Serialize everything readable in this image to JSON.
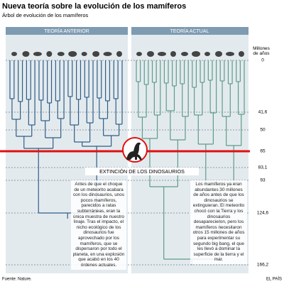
{
  "header": {
    "title": "Nueva teoría sobre la evolución de los mamíferos",
    "subtitle": "Árbol de evolución de los mamíferos"
  },
  "panels": [
    {
      "label": "TEORÍA ANTERIOR",
      "text": "Antes de que el choque de un meteorito acabara con los dinosaurios, unos pocos mamíferos, parecidos a ratas subterráneas, eran la única muestra de nuestro linaje. Tras el impacto, el nicho ecológico de los dinosaurios fue aprovechado por los mamíferos, que se dispersaron por todo el planeta, en una explosión que acabó en los 40 órdenes actuales."
    },
    {
      "label": "TEORÍA ACTUAL",
      "text": "Los mamíferos ya eran abundantes 30 millones de años antes de que los dinosaurios se extinguieran. El meteorito chocó con la Tierra y los dinosaurios desaparecieron, pero los mamíferos necesitaron otros 15 millones de años para experimentar su segundo big bang, el que les llevó a dominar la superficie de la tierra y el mar."
    }
  ],
  "time_axis": {
    "label": "Millones de años",
    "ticks": [
      "0",
      "41,6",
      "50",
      "65",
      "83,1",
      "93",
      "124,6",
      "166,2"
    ]
  },
  "event": "EXTINCIÓN DE LOS DINOSAURIOS",
  "footer": {
    "source": "Fuente: Nature.",
    "publisher": "EL PAÍS"
  }
}
